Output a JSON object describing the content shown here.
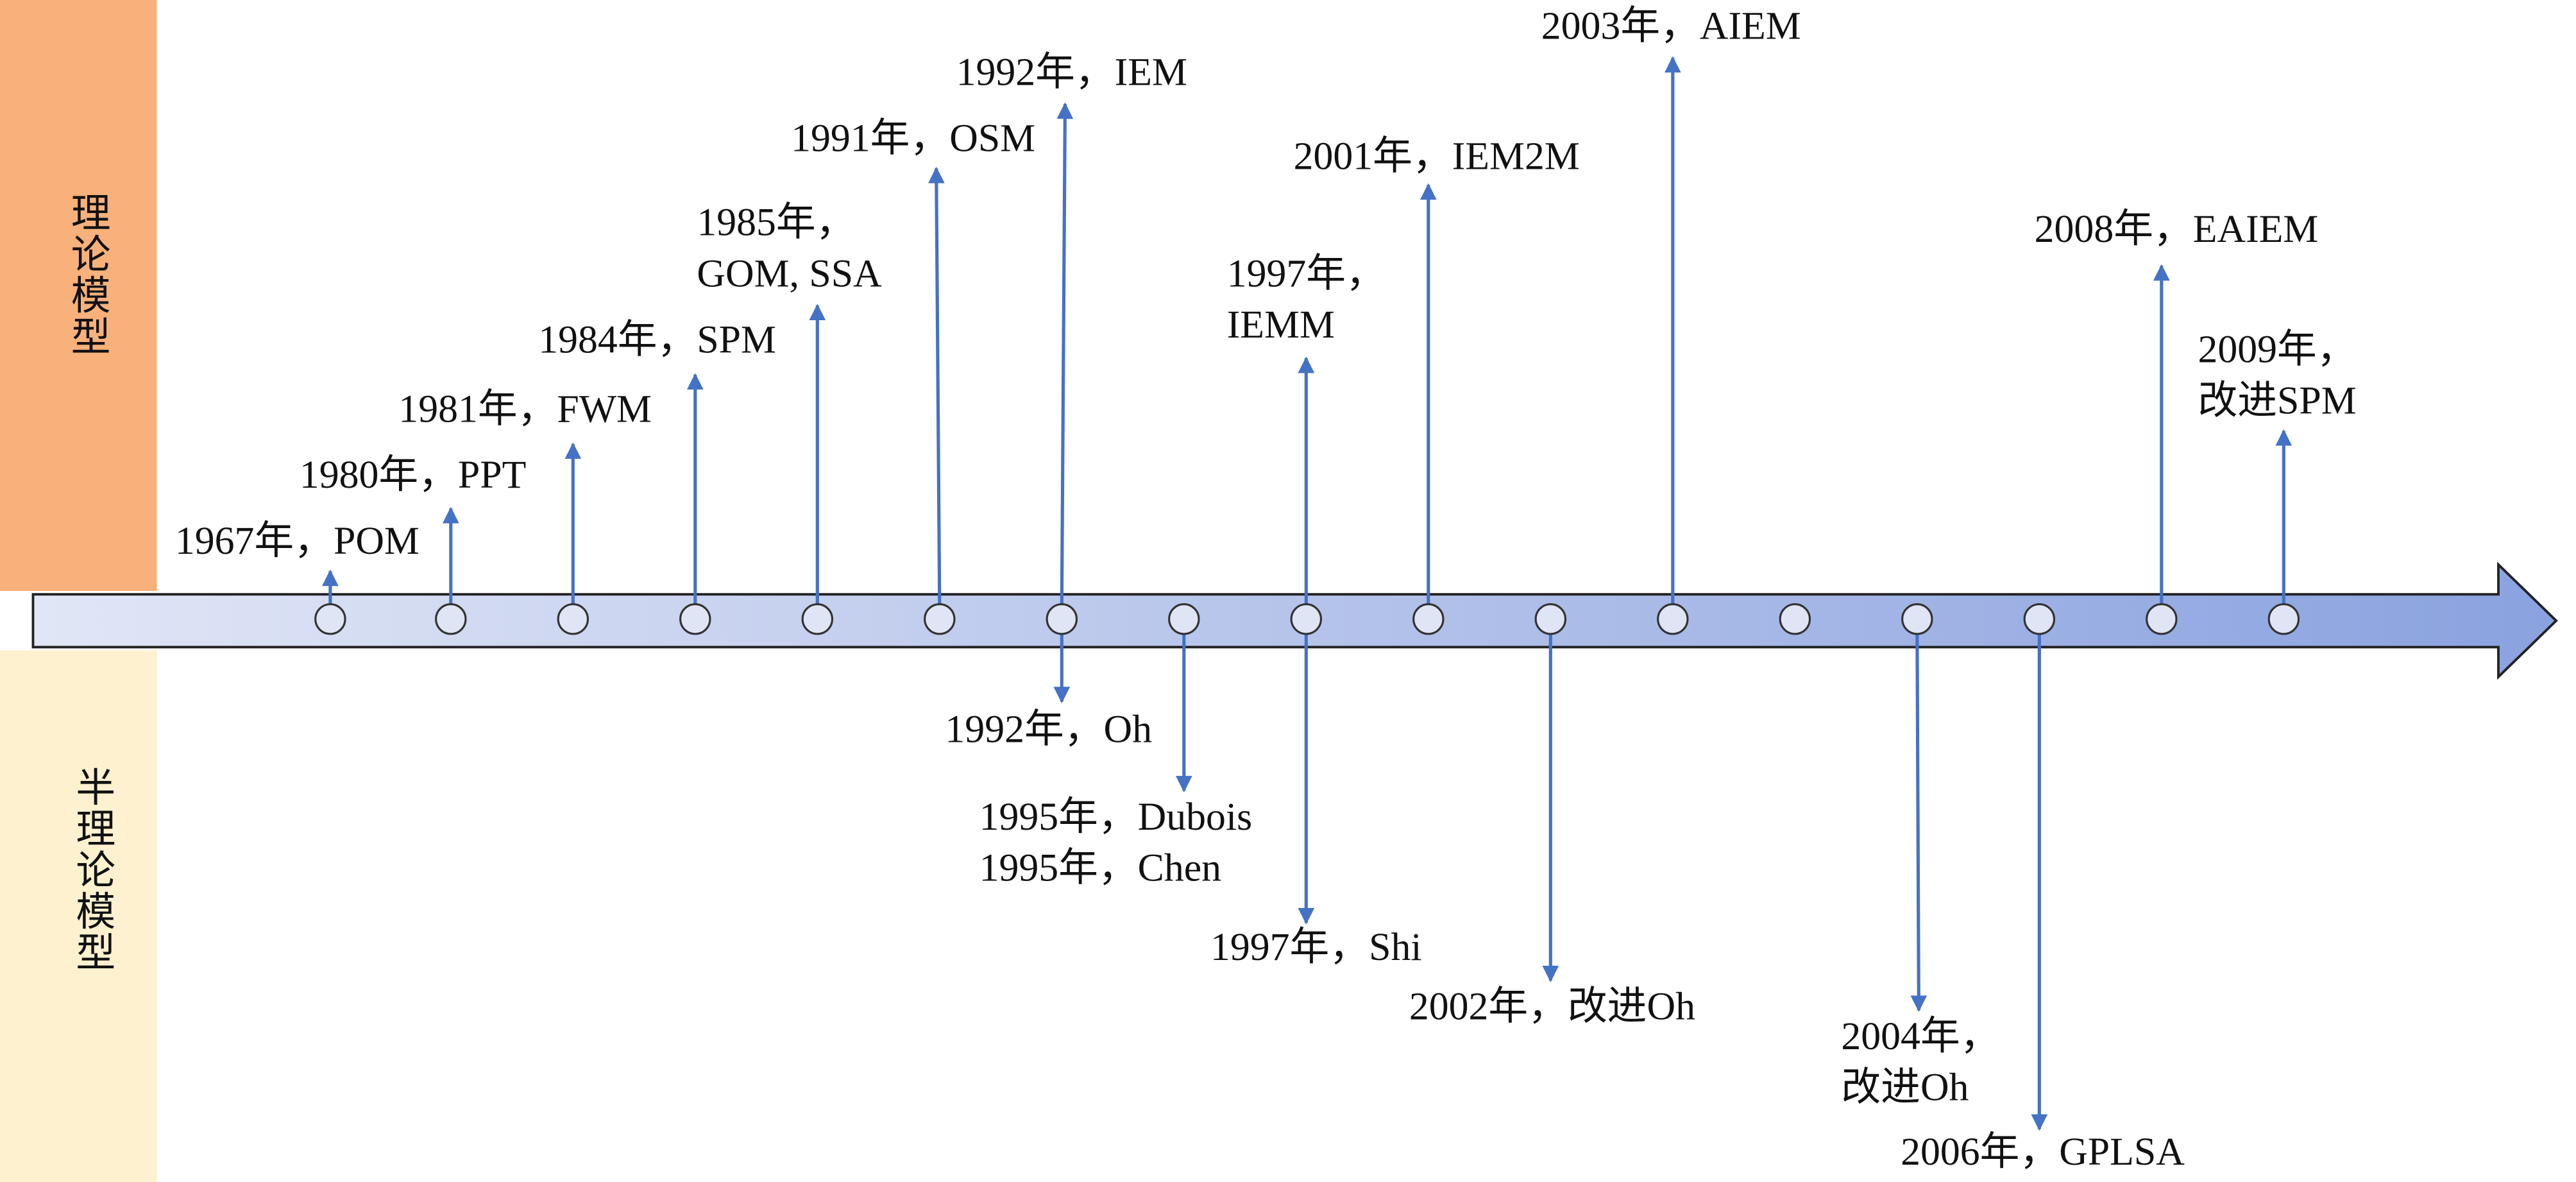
{
  "side_labels": {
    "theory": "理论模型",
    "semi_theory": "半理论模型"
  },
  "theory_events": [
    {
      "lines": [
        "1967年，POM"
      ]
    },
    {
      "lines": [
        "1980年，PPT"
      ]
    },
    {
      "lines": [
        "1981年，FWM"
      ]
    },
    {
      "lines": [
        "1984年，SPM"
      ]
    },
    {
      "lines": [
        "1985年，",
        "GOM, SSA"
      ]
    },
    {
      "lines": [
        "1991年，OSM"
      ]
    },
    {
      "lines": [
        "1992年，IEM"
      ]
    },
    {
      "lines": [
        "1997年，",
        "IEMM"
      ]
    },
    {
      "lines": [
        "2001年，IEM2M"
      ]
    },
    {
      "lines": [
        "2003年，AIEM"
      ]
    },
    {
      "lines": [
        "2008年，EAIEM"
      ]
    },
    {
      "lines": [
        "2009年，",
        "改进SPM"
      ]
    }
  ],
  "semi_theory_events": [
    {
      "lines": [
        "1992年，Oh"
      ]
    },
    {
      "lines": [
        "1995年，Dubois",
        "1995年，Chen"
      ]
    },
    {
      "lines": [
        "1997年，Shi"
      ]
    },
    {
      "lines": [
        "2002年，改进Oh"
      ]
    },
    {
      "lines": [
        "2004年，",
        "改进Oh"
      ]
    },
    {
      "lines": [
        "2006年，GPLSA"
      ]
    }
  ]
}
